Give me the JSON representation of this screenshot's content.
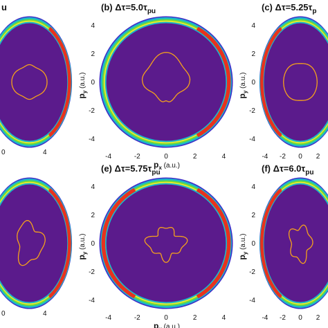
{
  "figure": {
    "panels": [
      {
        "id": "a",
        "title": "u",
        "show_ylabel": false,
        "show_xlabel": false
      },
      {
        "id": "b",
        "title": "(b) Δτ=5.0τ",
        "title_sub": "pu",
        "show_ylabel": true,
        "show_xlabel": true
      },
      {
        "id": "c",
        "title": "(c) Δτ=5.25τ",
        "title_sub": "p",
        "show_ylabel": true,
        "show_xlabel": true
      },
      {
        "id": "d",
        "title": "",
        "title_sub": "",
        "show_ylabel": false,
        "show_xlabel": false
      },
      {
        "id": "e",
        "title": "(e) Δτ=5.75τ",
        "title_sub": "pu",
        "show_ylabel": true,
        "show_xlabel": true
      },
      {
        "id": "f",
        "title": "(f) Δτ=6.0τ",
        "title_sub": "pu",
        "show_ylabel": true,
        "show_xlabel": true
      }
    ],
    "axes": {
      "xlabel": "p",
      "xlabel_sub": "x",
      "xlabel_unit": " (a.u.)",
      "ylabel": "p",
      "ylabel_sub": "y",
      "ylabel_unit": " (a.u.)",
      "range": [
        -4.7,
        4.7
      ],
      "ticks": [
        -4,
        -2,
        0,
        2,
        4
      ]
    },
    "colors": {
      "background": "#5b1b8c",
      "ring_outer": "#3f2ec8",
      "ring_teal": "#1bb9c9",
      "ring_green": "#6fdb3a",
      "ring_yellow": "#f2ea2a",
      "ring_red": "#e8321e",
      "contour": "#f5a21b"
    }
  }
}
